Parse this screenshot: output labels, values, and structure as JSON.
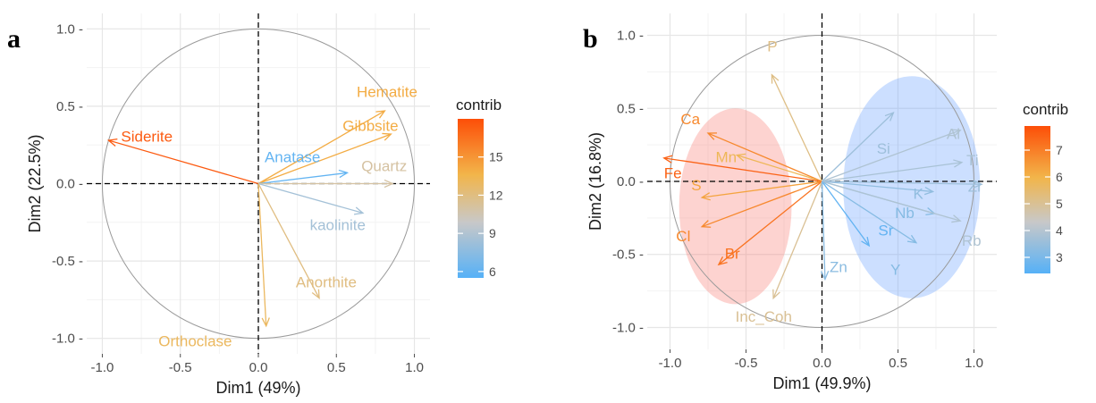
{
  "chart_data": [
    {
      "type": "scatter",
      "subtype": "pca-variable-correlation-circle",
      "panel_label": "a",
      "xlabel": "Dim1 (49%)",
      "ylabel": "Dim2 (22.5%)",
      "xlim": [
        -1.1,
        1.1
      ],
      "ylim": [
        -1.1,
        1.1
      ],
      "xticks": [
        -1.0,
        -0.5,
        0.0,
        0.5,
        1.0
      ],
      "yticks": [
        -1.0,
        -0.5,
        0.0,
        0.5,
        1.0
      ],
      "xtick_labels": [
        "-1.0",
        "-0.5",
        "0.0",
        "0.5",
        "1.0"
      ],
      "ytick_labels": [
        "-1.0 -",
        "-0.5 -",
        "0.0 -",
        "0.5 -",
        "1.0 -"
      ],
      "grid": true,
      "legend": {
        "title": "contrib",
        "position": "right",
        "range": [
          5.5,
          18
        ],
        "ticks": [
          6,
          9,
          12,
          15
        ],
        "tick_labels": [
          "6",
          "9",
          "12",
          "15"
        ]
      },
      "variables": [
        {
          "name": "Hematite",
          "x": 0.81,
          "y": 0.47,
          "contrib": 14,
          "label": "Hematite",
          "lx": 0.63,
          "ly": 0.56
        },
        {
          "name": "Gibbsite",
          "x": 0.85,
          "y": 0.32,
          "contrib": 14,
          "label": "Gibbsite",
          "lx": 0.54,
          "ly": 0.34
        },
        {
          "name": "Siderite",
          "x": -0.96,
          "y": 0.28,
          "contrib": 17.5,
          "label": "Siderite",
          "lx": -0.88,
          "ly": 0.27
        },
        {
          "name": "Anatase",
          "x": 0.57,
          "y": 0.07,
          "contrib": 6,
          "label": "Anatase",
          "lx": 0.04,
          "ly": 0.14
        },
        {
          "name": "Quartz",
          "x": 0.86,
          "y": 0.0,
          "contrib": 11,
          "label": "Quartz",
          "lx": 0.66,
          "ly": 0.08
        },
        {
          "name": "kaolinite",
          "x": 0.67,
          "y": -0.19,
          "contrib": 8.5,
          "label": "kaolinite",
          "lx": 0.33,
          "ly": -0.3
        },
        {
          "name": "Anorthite",
          "x": 0.39,
          "y": -0.74,
          "contrib": 12,
          "label": "Anorthite",
          "lx": 0.24,
          "ly": -0.67
        },
        {
          "name": "Orthoclase",
          "x": 0.05,
          "y": -0.92,
          "contrib": 13,
          "label": "Orthoclase",
          "lx": -0.64,
          "ly": -1.05
        }
      ]
    },
    {
      "type": "scatter",
      "subtype": "pca-variable-correlation-circle",
      "panel_label": "b",
      "xlabel": "Dim1 (49.9%)",
      "ylabel": "Dim2 (16.8%)",
      "xlim": [
        -1.15,
        1.15
      ],
      "ylim": [
        -1.15,
        1.15
      ],
      "xticks": [
        -1.0,
        -0.5,
        0.0,
        0.5,
        1.0
      ],
      "yticks": [
        -1.0,
        -0.5,
        0.0,
        0.5,
        1.0
      ],
      "xtick_labels": [
        "-1.0",
        "-0.5",
        "0.0",
        "0.5",
        "1.0"
      ],
      "ytick_labels": [
        "-1.0 -",
        "-0.5 -",
        "0.0 -",
        "0.5 -",
        "1.0 -"
      ],
      "grid": true,
      "legend": {
        "title": "contrib",
        "position": "right",
        "range": [
          2.4,
          7.9
        ],
        "ticks": [
          3,
          4,
          5,
          6,
          7
        ],
        "tick_labels": [
          "3",
          "4",
          "5",
          "6",
          "7"
        ]
      },
      "groups": [
        {
          "color": "#f8766d",
          "ellipse": {
            "cx": -0.57,
            "cy": -0.17,
            "rx": 0.37,
            "ry": 0.67
          }
        },
        {
          "color": "#619cff",
          "ellipse": {
            "cx": 0.59,
            "cy": -0.04,
            "rx": 0.45,
            "ry": 0.76
          }
        }
      ],
      "variables": [
        {
          "name": "P",
          "x": -0.33,
          "y": 0.73,
          "contrib": 5.2,
          "label": "P",
          "lx": -0.36,
          "ly": 0.89
        },
        {
          "name": "Ca",
          "x": -0.75,
          "y": 0.33,
          "contrib": 6.8,
          "label": "Ca",
          "lx": -0.93,
          "ly": 0.39
        },
        {
          "name": "Mn",
          "x": -0.56,
          "y": 0.18,
          "contrib": 5.8,
          "label": "Mn",
          "lx": -0.7,
          "ly": 0.13
        },
        {
          "name": "Fe",
          "x": -1.04,
          "y": 0.16,
          "contrib": 7.5,
          "label": "Fe",
          "lx": -1.04,
          "ly": 0.02
        },
        {
          "name": "S",
          "x": -0.79,
          "y": -0.11,
          "contrib": 6.3,
          "label": "S",
          "lx": -0.86,
          "ly": -0.06
        },
        {
          "name": "Cl",
          "x": -0.79,
          "y": -0.31,
          "contrib": 6.8,
          "label": "Cl",
          "lx": -0.96,
          "ly": -0.41
        },
        {
          "name": "Br",
          "x": -0.68,
          "y": -0.57,
          "contrib": 7.2,
          "label": "Br",
          "lx": -0.64,
          "ly": -0.53
        },
        {
          "name": "Inc_Coh",
          "x": -0.32,
          "y": -0.8,
          "contrib": 5.0,
          "label": "Inc_Coh",
          "lx": -0.57,
          "ly": -0.96
        },
        {
          "name": "Si",
          "x": 0.47,
          "y": 0.47,
          "contrib": 3.6,
          "label": "Si",
          "lx": 0.36,
          "ly": 0.19
        },
        {
          "name": "Al",
          "x": 0.91,
          "y": 0.35,
          "contrib": 3.9,
          "label": "Al",
          "lx": 0.82,
          "ly": 0.29
        },
        {
          "name": "Ti",
          "x": 0.92,
          "y": 0.13,
          "contrib": 3.8,
          "label": "Ti",
          "lx": 0.95,
          "ly": 0.11
        },
        {
          "name": "K",
          "x": 0.73,
          "y": -0.07,
          "contrib": 3.4,
          "label": "K",
          "lx": 0.6,
          "ly": -0.12
        },
        {
          "name": "Zr",
          "x": 1.05,
          "y": -0.02,
          "contrib": 3.6,
          "label": "Zr",
          "lx": 0.96,
          "ly": -0.07
        },
        {
          "name": "Nb",
          "x": 0.74,
          "y": -0.22,
          "contrib": 3.2,
          "label": "Nb",
          "lx": 0.48,
          "ly": -0.25
        },
        {
          "name": "Rb",
          "x": 0.91,
          "y": -0.27,
          "contrib": 3.9,
          "label": "Rb",
          "lx": 0.92,
          "ly": -0.44
        },
        {
          "name": "Sr",
          "x": 0.31,
          "y": -0.44,
          "contrib": 2.6,
          "label": "Sr",
          "lx": 0.37,
          "ly": -0.37
        },
        {
          "name": "Y",
          "x": 0.62,
          "y": -0.42,
          "contrib": 3.2,
          "label": "Y",
          "lx": 0.45,
          "ly": -0.64
        },
        {
          "name": "Zn",
          "x": 0.02,
          "y": -0.67,
          "contrib": 3.3,
          "label": "Zn",
          "lx": 0.05,
          "ly": -0.62
        }
      ]
    }
  ]
}
